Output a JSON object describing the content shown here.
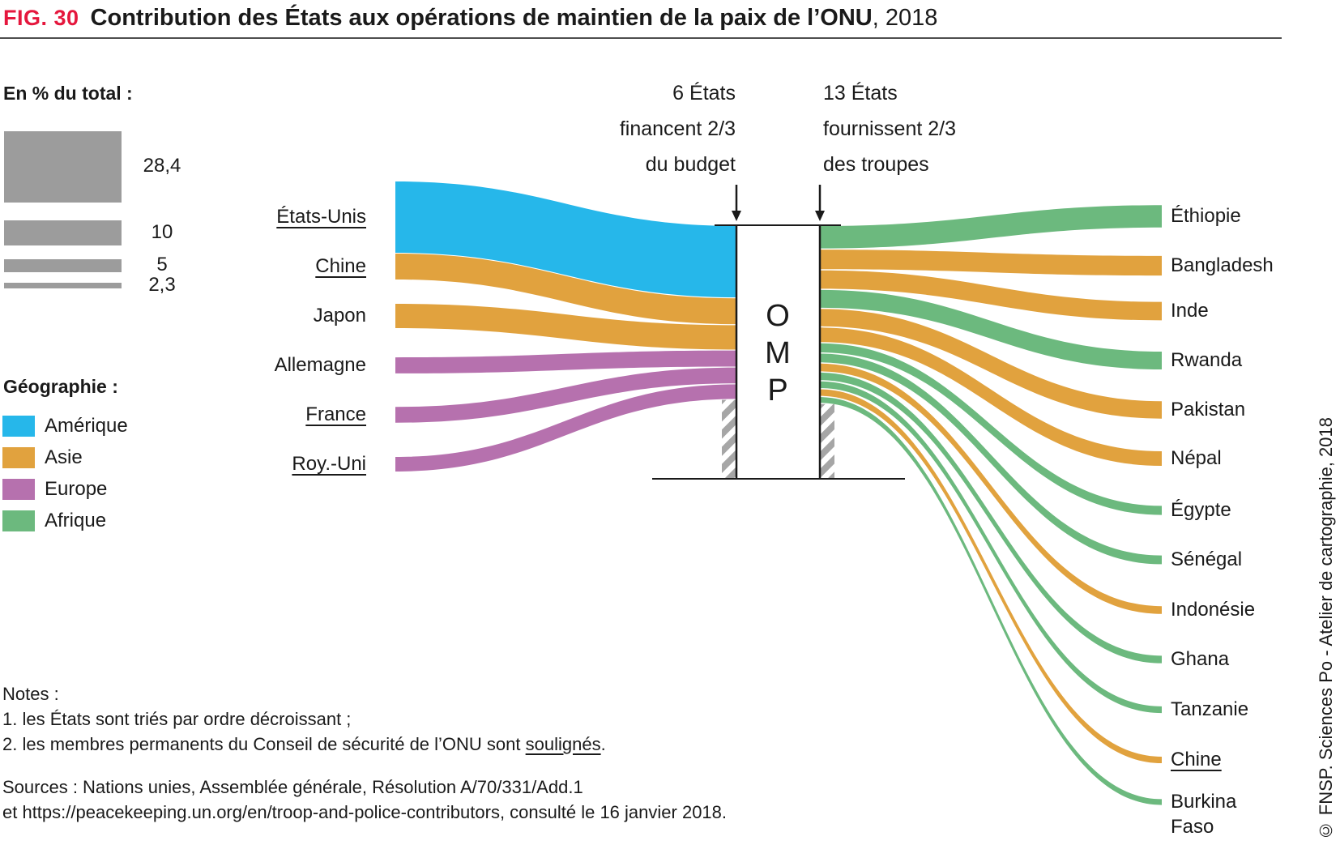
{
  "header": {
    "fig_label": "FIG. 30",
    "title": "Contribution des États aux opérations de maintien de la paix de l’ONU",
    "title_suffix": ", 2018"
  },
  "colors": {
    "america": "#26b7ea",
    "asia": "#e1a23e",
    "europe": "#b671ae",
    "africa": "#6cb97e",
    "size_bar_gray": "#9c9c9c",
    "hatch_gray": "#a6a6a6",
    "fig_tag_red": "#e5173d",
    "text": "#1a1a1a"
  },
  "size_legend": {
    "title": "En % du total :",
    "items": [
      {
        "label": "28,4",
        "value": 28.4
      },
      {
        "label": "10",
        "value": 10
      },
      {
        "label": "5",
        "value": 5
      },
      {
        "label": "2,3",
        "value": 2.3
      }
    ]
  },
  "geo_legend": {
    "title": "Géographie :",
    "items": [
      {
        "label": "Amérique",
        "color": "#26b7ea"
      },
      {
        "label": "Asie",
        "color": "#e1a23e"
      },
      {
        "label": "Europe",
        "color": "#b671ae"
      },
      {
        "label": "Afrique",
        "color": "#6cb97e"
      }
    ]
  },
  "annotations": {
    "budget": {
      "line1": "6 États",
      "line2": "financent 2/3",
      "line3": "du budget"
    },
    "troops": {
      "line1": "13 États",
      "line2": "fournissent 2/3",
      "line3": "des troupes"
    }
  },
  "chart_data": {
    "type": "sankey",
    "unit": "% du total",
    "center_node": {
      "label": "OMP"
    },
    "budget_contributors": [
      {
        "name": "États-Unis",
        "value": 28.4,
        "region": "Amérique",
        "underlined": true
      },
      {
        "name": "Chine",
        "value": 10.3,
        "region": "Asie",
        "underlined": true
      },
      {
        "name": "Japon",
        "value": 9.7,
        "region": "Asie",
        "underlined": false
      },
      {
        "name": "Allemagne",
        "value": 6.4,
        "region": "Europe",
        "underlined": false
      },
      {
        "name": "France",
        "value": 6.3,
        "region": "Europe",
        "underlined": true
      },
      {
        "name": "Roy.-Uni",
        "value": 5.8,
        "region": "Europe",
        "underlined": true
      }
    ],
    "troop_contributors": [
      {
        "name": "Éthiopie",
        "value": 8.9,
        "region": "Afrique",
        "underlined": false
      },
      {
        "name": "Bangladesh",
        "value": 7.8,
        "region": "Asie",
        "underlined": false
      },
      {
        "name": "Inde",
        "value": 7.3,
        "region": "Asie",
        "underlined": false
      },
      {
        "name": "Rwanda",
        "value": 7.1,
        "region": "Afrique",
        "underlined": false
      },
      {
        "name": "Pakistan",
        "value": 6.9,
        "region": "Asie",
        "underlined": false
      },
      {
        "name": "Népal",
        "value": 5.8,
        "region": "Asie",
        "underlined": false
      },
      {
        "name": "Égypte",
        "value": 3.6,
        "region": "Afrique",
        "underlined": false
      },
      {
        "name": "Sénégal",
        "value": 3.5,
        "region": "Afrique",
        "underlined": false
      },
      {
        "name": "Indonésie",
        "value": 3.1,
        "region": "Asie",
        "underlined": false
      },
      {
        "name": "Ghana",
        "value": 3.0,
        "region": "Afrique",
        "underlined": false
      },
      {
        "name": "Tanzanie",
        "value": 2.7,
        "region": "Afrique",
        "underlined": false
      },
      {
        "name": "Chine",
        "value": 2.6,
        "region": "Asie",
        "underlined": true
      },
      {
        "name": "Burkina Faso",
        "value": 2.3,
        "region": "Afrique",
        "underlined": false
      }
    ]
  },
  "notes": {
    "title": "Notes :",
    "note1": "1. les États sont triés par ordre décroissant ;",
    "note2_prefix": "2. les membres permanents du Conseil de sécurité de l’ONU sont ",
    "note2_underlined": "soulignés",
    "note2_suffix": "."
  },
  "sources": {
    "line1": "Sources : Nations unies, Assemblée générale, Résolution A/70/331/Add.1",
    "line2": "et https://peacekeeping.un.org/en/troop-and-police-contributors, consulté le 16 janvier 2018."
  },
  "copyright": "© FNSP. Sciences Po - Atelier de cartographie, 2018"
}
